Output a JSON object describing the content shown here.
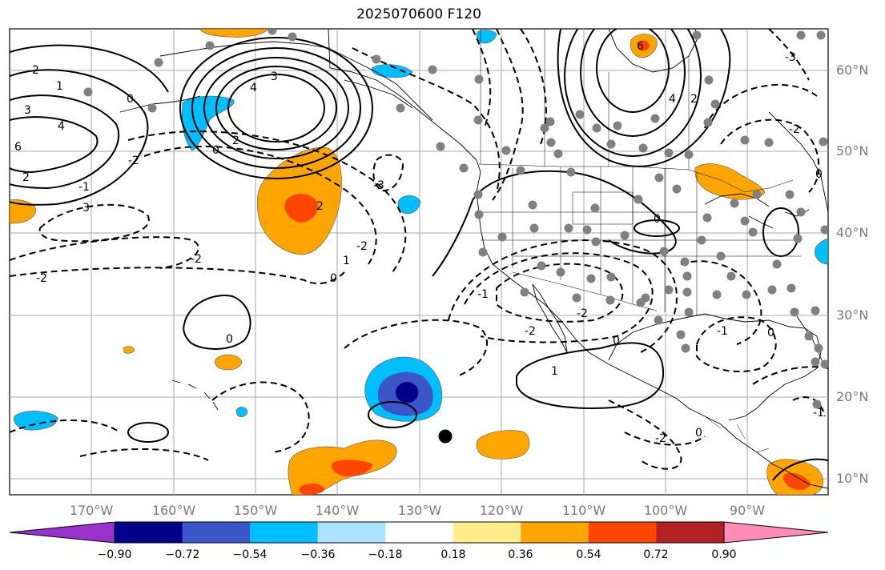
{
  "title": "2025070600 F120",
  "map": {
    "latitude_labels": [
      "60°N",
      "50°N",
      "40°N",
      "30°N",
      "20°N",
      "10°N"
    ],
    "longitude_labels": [
      "170°W",
      "160°W",
      "150°W",
      "140°W",
      "130°W",
      "120°W",
      "110°W",
      "100°W",
      "90°W"
    ],
    "contour_labels": [
      "2",
      "1",
      "3",
      "4",
      "6",
      "2",
      "0",
      "4",
      "3",
      "2",
      "0",
      "-2",
      "3",
      "-1",
      "-3",
      "-2",
      "-2",
      "2",
      "1",
      "0",
      "-2",
      "-1",
      "-2",
      "-2",
      "0",
      "1",
      "0",
      "0",
      "-1",
      "-2",
      "0",
      "-1",
      "0",
      "6",
      "2",
      "4",
      "0",
      "-2",
      "-3"
    ],
    "fill_colors": {
      "neg_strong": "#00008b",
      "neg_mid": "#3a56c8",
      "neg_light": "#00bfff",
      "pos_light": "#ffa500",
      "pos_mid": "#ff4500"
    },
    "station_marker_color": "#808080",
    "storm_marker_color": "#000000"
  },
  "colorbar": {
    "tick_labels": [
      "−0.90",
      "−0.72",
      "−0.54",
      "−0.36",
      "−0.18",
      "0.18",
      "0.36",
      "0.54",
      "0.72",
      "0.90"
    ],
    "colors": [
      "#9932cc",
      "#00008b",
      "#3a56c8",
      "#00bfff",
      "#aee3ff",
      "#ffffff",
      "#ffec8b",
      "#ffa500",
      "#ff4500",
      "#b22222",
      "#ff8cb4"
    ]
  }
}
